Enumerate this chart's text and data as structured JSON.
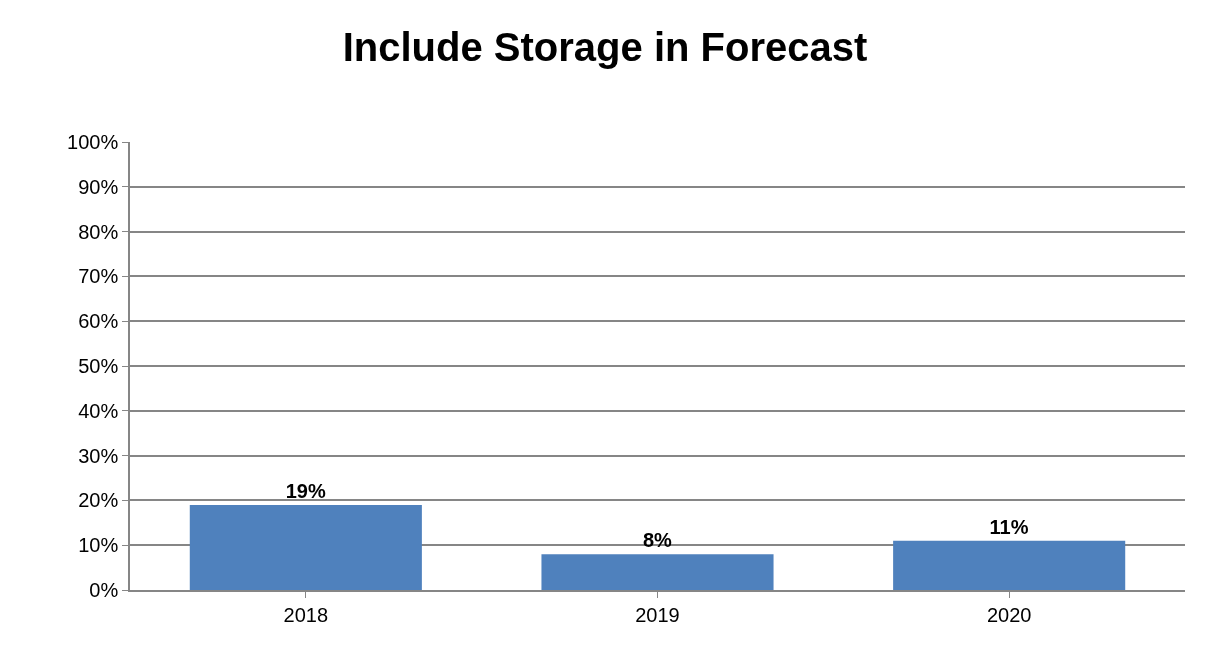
{
  "chart_data": {
    "type": "bar",
    "title": "Include Storage in Forecast",
    "categories": [
      "2018",
      "2019",
      "2020"
    ],
    "values": [
      19,
      8,
      11
    ],
    "value_labels": [
      "19%",
      "8%",
      "11%"
    ],
    "color": "#4f81bd",
    "ylim": [
      0,
      100
    ],
    "yticks": [
      {
        "value": 0,
        "label": "0%"
      },
      {
        "value": 10,
        "label": "10%"
      },
      {
        "value": 20,
        "label": "20%"
      },
      {
        "value": 30,
        "label": "30%"
      },
      {
        "value": 40,
        "label": "40%"
      },
      {
        "value": 50,
        "label": "50%"
      },
      {
        "value": 60,
        "label": "60%"
      },
      {
        "value": 70,
        "label": "70%"
      },
      {
        "value": 80,
        "label": "80%"
      },
      {
        "value": 90,
        "label": "90%"
      },
      {
        "value": 100,
        "label": "100%"
      }
    ],
    "grid": "y"
  }
}
